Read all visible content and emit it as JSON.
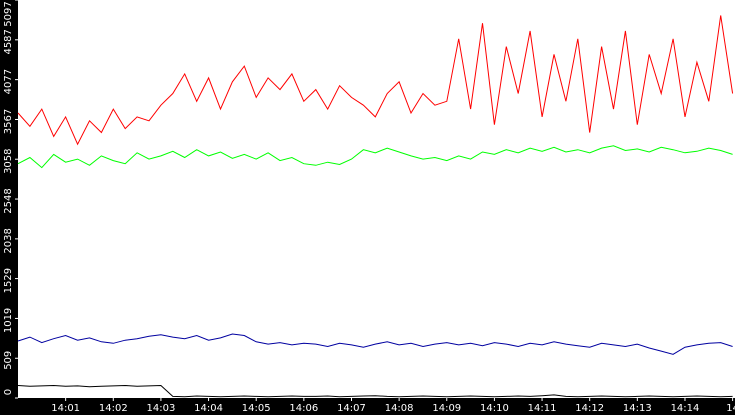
{
  "chart_data": {
    "type": "line",
    "x": [
      0,
      0.25,
      0.5,
      0.75,
      1,
      1.25,
      1.5,
      1.75,
      2,
      2.25,
      2.5,
      2.75,
      3,
      3.25,
      3.5,
      3.75,
      4,
      4.25,
      4.5,
      4.75,
      5,
      5.25,
      5.5,
      5.75,
      6,
      6.25,
      6.5,
      6.75,
      7,
      7.25,
      7.5,
      7.75,
      8,
      8.25,
      8.5,
      8.75,
      9,
      9.25,
      9.5,
      9.75,
      10,
      10.25,
      10.5,
      10.75,
      11,
      11.25,
      11.5,
      11.75,
      12,
      12.25,
      12.5,
      12.75,
      13,
      13.25,
      13.5,
      13.75,
      14,
      14.25,
      14.5,
      14.75,
      15
    ],
    "xlim": [
      0,
      15.05
    ],
    "xticks": [
      {
        "value": 1,
        "label": "14:01"
      },
      {
        "value": 2,
        "label": "14:02"
      },
      {
        "value": 3,
        "label": "14:03"
      },
      {
        "value": 4,
        "label": "14:04"
      },
      {
        "value": 5,
        "label": "14:05"
      },
      {
        "value": 6,
        "label": "14:06"
      },
      {
        "value": 7,
        "label": "14:07"
      },
      {
        "value": 8,
        "label": "14:08"
      },
      {
        "value": 9,
        "label": "14:09"
      },
      {
        "value": 10,
        "label": "14:10"
      },
      {
        "value": 11,
        "label": "14:11"
      },
      {
        "value": 12,
        "label": "14:12"
      },
      {
        "value": 13,
        "label": "14:13"
      },
      {
        "value": 14,
        "label": "14:14"
      },
      {
        "value": 15,
        "label": "14"
      }
    ],
    "ylim": [
      0,
      5097
    ],
    "yticks": [
      0,
      509,
      1019,
      1529,
      2038,
      2548,
      3058,
      3567,
      4077,
      4587,
      5097
    ],
    "series": [
      {
        "color": "#ff0000",
        "values": [
          3650,
          3480,
          3700,
          3350,
          3600,
          3250,
          3550,
          3400,
          3700,
          3450,
          3600,
          3550,
          3750,
          3900,
          4150,
          3800,
          4100,
          3700,
          4050,
          4250,
          3850,
          4100,
          3950,
          4150,
          3800,
          3950,
          3700,
          4000,
          3850,
          3750,
          3600,
          3900,
          4050,
          3650,
          3900,
          3750,
          3800,
          4600,
          3700,
          4800,
          3500,
          4500,
          3900,
          4700,
          3600,
          4400,
          3800,
          4600,
          3400,
          4500,
          3700,
          4700,
          3500,
          4400,
          3900,
          4600,
          3600,
          4300,
          3800,
          4900,
          3900
        ]
      },
      {
        "color": "#00ff00",
        "values": [
          3000,
          3080,
          2950,
          3120,
          3020,
          3060,
          2980,
          3100,
          3040,
          3000,
          3140,
          3060,
          3100,
          3160,
          3080,
          3180,
          3100,
          3150,
          3070,
          3120,
          3060,
          3140,
          3040,
          3080,
          3000,
          2980,
          3020,
          2990,
          3060,
          3180,
          3140,
          3200,
          3150,
          3100,
          3060,
          3080,
          3040,
          3100,
          3060,
          3150,
          3120,
          3180,
          3140,
          3200,
          3160,
          3210,
          3150,
          3180,
          3140,
          3200,
          3230,
          3170,
          3190,
          3150,
          3210,
          3180,
          3140,
          3160,
          3200,
          3170,
          3120
        ]
      },
      {
        "color": "#0000a0",
        "values": [
          730,
          780,
          710,
          760,
          800,
          740,
          770,
          720,
          700,
          740,
          760,
          790,
          810,
          780,
          760,
          800,
          740,
          770,
          820,
          800,
          720,
          690,
          710,
          680,
          700,
          690,
          660,
          700,
          680,
          650,
          690,
          720,
          680,
          700,
          660,
          690,
          710,
          680,
          700,
          670,
          710,
          690,
          660,
          700,
          680,
          720,
          690,
          670,
          650,
          700,
          680,
          660,
          690,
          640,
          600,
          560,
          650,
          680,
          700,
          710,
          660
        ]
      },
      {
        "color": "#000000",
        "values": [
          160,
          150,
          155,
          160,
          150,
          155,
          145,
          150,
          155,
          160,
          150,
          155,
          160,
          20,
          15,
          25,
          20,
          15,
          20,
          25,
          20,
          15,
          20,
          25,
          20,
          20,
          25,
          15,
          20,
          25,
          30,
          20,
          15,
          20,
          25,
          20,
          15,
          20,
          25,
          20,
          15,
          20,
          25,
          20,
          30,
          40,
          20,
          15,
          20,
          25,
          20,
          15,
          20,
          25,
          20,
          15,
          20,
          25,
          20,
          15,
          20
        ]
      }
    ]
  }
}
